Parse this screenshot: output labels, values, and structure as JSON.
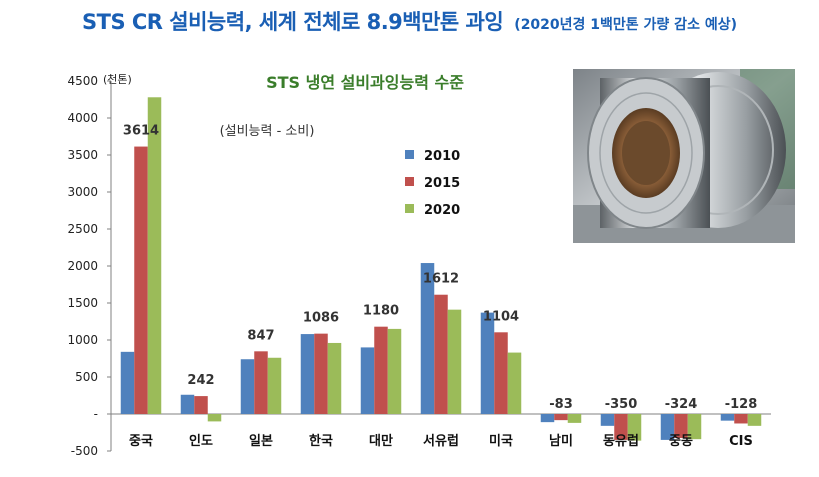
{
  "title": {
    "main": "STS CR 설비능력, 세계 전체로 8.9백만톤 과잉",
    "sub": "(2020년경 1백만톤 가량 감소 예상)"
  },
  "colors": {
    "s2010": "#4f81bd",
    "s2015": "#c0504d",
    "s2020": "#9bbb59",
    "title": "#1a5fb4",
    "subtitle": "#3a7d2a"
  },
  "chart_data": {
    "type": "bar",
    "title": "STS 냉연 설비과잉능력 수준",
    "subtitle": "(설비능력 - 소비)",
    "yunit": "(천톤)",
    "ylim": [
      -500,
      4500
    ],
    "yticks": [
      -500,
      0,
      500,
      1000,
      1500,
      2000,
      2500,
      3000,
      3500,
      4000,
      4500
    ],
    "ytick_labels": [
      "-500",
      "-",
      "500",
      "1000",
      "1500",
      "2000",
      "2500",
      "3000",
      "3500",
      "4000",
      "4500"
    ],
    "grid": false,
    "legend_position": "center",
    "categories": [
      "중국",
      "인도",
      "일본",
      "한국",
      "대만",
      "서유럽",
      "미국",
      "남미",
      "동유럽",
      "중동",
      "CIS"
    ],
    "series": [
      {
        "name": "2010",
        "values": [
          840,
          260,
          740,
          1080,
          900,
          2040,
          1370,
          -110,
          -160,
          -350,
          -90
        ]
      },
      {
        "name": "2015",
        "values": [
          3614,
          242,
          847,
          1086,
          1180,
          1612,
          1104,
          -83,
          -350,
          -324,
          -128
        ]
      },
      {
        "name": "2020",
        "values": [
          4280,
          -100,
          760,
          960,
          1150,
          1410,
          830,
          -120,
          -360,
          -340,
          -160
        ]
      }
    ],
    "data_labels": [
      "3614",
      "242",
      "847",
      "1086",
      "1180",
      "1612",
      "1104",
      "-83",
      "-350",
      "-324",
      "-128"
    ]
  },
  "photo": {
    "icon": "steel-coil-photo"
  }
}
